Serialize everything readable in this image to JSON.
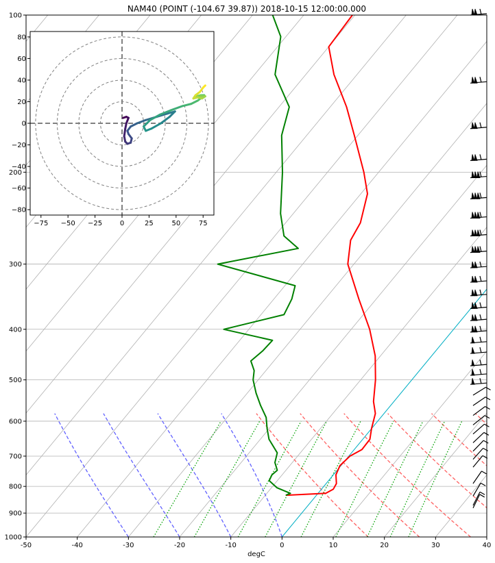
{
  "chart_data": [
    {
      "type": "line",
      "subtype": "skew-t log-p",
      "title": "NAM40 (POINT (-104.67 39.87)) 2018-10-15 12:00:00.000",
      "xlabel": "degC",
      "ylabel": "",
      "xlim": [
        -50,
        40
      ],
      "ylim": [
        1000,
        100
      ],
      "y_scale": "log",
      "grid": true,
      "x_ticks": [
        "-50",
        "-40",
        "-30",
        "-20",
        "-10",
        "0",
        "10",
        "20",
        "30",
        "40"
      ],
      "y_ticks": [
        "100",
        "200",
        "300",
        "400",
        "500",
        "600",
        "700",
        "800",
        "900",
        "1000"
      ],
      "series": [
        {
          "role": "temperature",
          "color": "#ff0000",
          "points": [
            {
              "p": 832,
              "t": -6.0
            },
            {
              "p": 825,
              "t": 1.5
            },
            {
              "p": 810,
              "t": 2.3
            },
            {
              "p": 790,
              "t": 2.0
            },
            {
              "p": 760,
              "t": 0.5
            },
            {
              "p": 730,
              "t": -0.2
            },
            {
              "p": 700,
              "t": 0.2
            },
            {
              "p": 680,
              "t": 1.5
            },
            {
              "p": 650,
              "t": 1.4
            },
            {
              "p": 620,
              "t": 0.0
            },
            {
              "p": 580,
              "t": -1.7
            },
            {
              "p": 550,
              "t": -4.0
            },
            {
              "p": 500,
              "t": -7.1
            },
            {
              "p": 450,
              "t": -11.0
            },
            {
              "p": 400,
              "t": -16.4
            },
            {
              "p": 350,
              "t": -23.4
            },
            {
              "p": 300,
              "t": -31.2
            },
            {
              "p": 270,
              "t": -34.5
            },
            {
              "p": 250,
              "t": -35.4
            },
            {
              "p": 220,
              "t": -38.7
            },
            {
              "p": 200,
              "t": -42.9
            },
            {
              "p": 170,
              "t": -50.7
            },
            {
              "p": 150,
              "t": -56.8
            },
            {
              "p": 130,
              "t": -64.5
            },
            {
              "p": 115,
              "t": -70.0
            },
            {
              "p": 100,
              "t": -70.5
            },
            {
              "p": 90,
              "t": -70.0
            },
            {
              "p": 82,
              "t": -69.6
            }
          ]
        },
        {
          "role": "dewpoint",
          "color": "#008000",
          "points": [
            {
              "p": 832,
              "t": -6.0
            },
            {
              "p": 825,
              "t": -5.4
            },
            {
              "p": 805,
              "t": -8.9
            },
            {
              "p": 780,
              "t": -11.6
            },
            {
              "p": 760,
              "t": -12.0
            },
            {
              "p": 745,
              "t": -11.7
            },
            {
              "p": 720,
              "t": -13.4
            },
            {
              "p": 690,
              "t": -14.5
            },
            {
              "p": 650,
              "t": -18.3
            },
            {
              "p": 620,
              "t": -20.4
            },
            {
              "p": 590,
              "t": -22.4
            },
            {
              "p": 560,
              "t": -25.4
            },
            {
              "p": 530,
              "t": -28.3
            },
            {
              "p": 500,
              "t": -31.0
            },
            {
              "p": 480,
              "t": -32.3
            },
            {
              "p": 460,
              "t": -34.5
            },
            {
              "p": 440,
              "t": -33.8
            },
            {
              "p": 420,
              "t": -33.6
            },
            {
              "p": 400,
              "t": -44.9
            },
            {
              "p": 375,
              "t": -35.5
            },
            {
              "p": 350,
              "t": -36.5
            },
            {
              "p": 330,
              "t": -38.0
            },
            {
              "p": 300,
              "t": -56.6
            },
            {
              "p": 280,
              "t": -43.4
            },
            {
              "p": 265,
              "t": -48.2
            },
            {
              "p": 240,
              "t": -52.5
            },
            {
              "p": 200,
              "t": -58.8
            },
            {
              "p": 170,
              "t": -64.9
            },
            {
              "p": 150,
              "t": -68.0
            },
            {
              "p": 130,
              "t": -76.0
            },
            {
              "p": 110,
              "t": -81.0
            },
            {
              "p": 95,
              "t": -88.8
            },
            {
              "p": 82,
              "t": -93.3
            }
          ]
        }
      ],
      "reference_lines": {
        "dry_adiabats_theta_K": [
          340,
          330,
          320,
          310,
          300,
          290
        ],
        "moist_adiabats_start_degC": [
          0,
          -10,
          -20,
          -30
        ],
        "mixing_ratio_lines_g_per_kg": [
          0.5,
          1,
          2,
          3,
          5,
          8,
          12,
          16,
          20
        ],
        "dry_adiabat_color": "#ff6060",
        "moist_adiabat_color": "#6060ff",
        "mixing_ratio_color": "#00a000",
        "isotherm_zero_color": "#00b2c8",
        "skew_grid_color": "#b0b0b0",
        "pressure_grid_color": "#b0b0b0"
      },
      "wind_barbs_pressure_hPa": [
        100,
        135,
        165,
        190,
        205,
        225,
        245,
        265,
        285,
        305,
        325,
        345,
        365,
        385,
        405,
        425,
        445,
        470,
        490,
        510,
        535,
        560,
        585,
        610,
        635,
        660,
        685,
        710,
        735,
        790,
        835,
        870,
        880
      ]
    },
    {
      "type": "line",
      "subtype": "hodograph",
      "xlim": [
        -85,
        85
      ],
      "ylim": [
        -85,
        85
      ],
      "x_ticks": [
        "−75",
        "−50",
        "−25",
        "0",
        "25",
        "50",
        "75"
      ],
      "y_ticks": [
        "80",
        "60",
        "40",
        "20",
        "0",
        "−20",
        "−40",
        "−60",
        "−80"
      ],
      "range_rings": [
        20,
        40,
        60,
        80
      ],
      "points": [
        {
          "u": 1,
          "v": 5
        },
        {
          "u": 4,
          "v": 6
        },
        {
          "u": 6,
          "v": 5
        },
        {
          "u": 4,
          "v": 0
        },
        {
          "u": 3,
          "v": -5
        },
        {
          "u": 2,
          "v": -12
        },
        {
          "u": 3,
          "v": -17
        },
        {
          "u": 5,
          "v": -19
        },
        {
          "u": 8,
          "v": -18
        },
        {
          "u": 9,
          "v": -14
        },
        {
          "u": 6,
          "v": -10
        },
        {
          "u": 5,
          "v": -7
        },
        {
          "u": 8,
          "v": -3
        },
        {
          "u": 14,
          "v": 0
        },
        {
          "u": 22,
          "v": 3
        },
        {
          "u": 32,
          "v": 6
        },
        {
          "u": 42,
          "v": 9
        },
        {
          "u": 49,
          "v": 11
        },
        {
          "u": 44,
          "v": 6
        },
        {
          "u": 36,
          "v": 0
        },
        {
          "u": 27,
          "v": -5
        },
        {
          "u": 22,
          "v": -7
        },
        {
          "u": 20,
          "v": -3
        },
        {
          "u": 26,
          "v": 3
        },
        {
          "u": 35,
          "v": 8
        },
        {
          "u": 45,
          "v": 12
        },
        {
          "u": 56,
          "v": 16
        },
        {
          "u": 64,
          "v": 18
        },
        {
          "u": 70,
          "v": 21
        },
        {
          "u": 74,
          "v": 24
        },
        {
          "u": 76,
          "v": 26
        },
        {
          "u": 73,
          "v": 26
        },
        {
          "u": 69,
          "v": 25
        },
        {
          "u": 73,
          "v": 25
        },
        {
          "u": 77,
          "v": 25
        },
        {
          "u": 74,
          "v": 23
        },
        {
          "u": 70,
          "v": 24
        },
        {
          "u": 66,
          "v": 23
        },
        {
          "u": 68,
          "v": 26
        },
        {
          "u": 72,
          "v": 29
        },
        {
          "u": 75,
          "v": 33
        },
        {
          "u": 77,
          "v": 35
        }
      ],
      "colormap": [
        "#440154",
        "#3b528b",
        "#21918c",
        "#5ec962",
        "#fde725"
      ]
    }
  ]
}
